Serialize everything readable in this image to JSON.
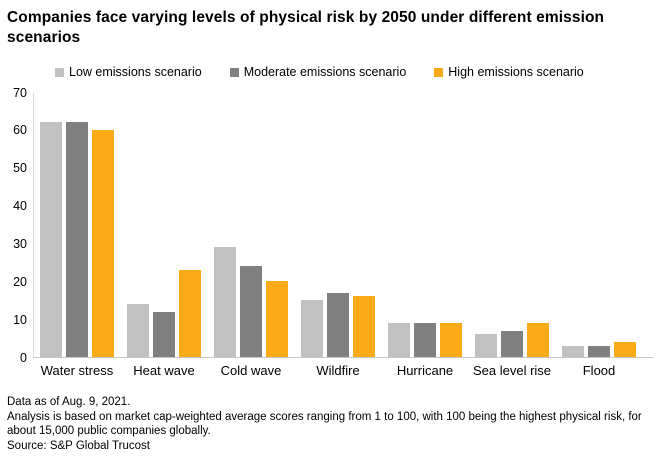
{
  "chart_data": {
    "type": "bar",
    "title": "Companies face varying levels of physical risk by 2050 under different emission scenarios",
    "categories": [
      "Water stress",
      "Heat wave",
      "Cold wave",
      "Wildfire",
      "Hurricane",
      "Sea level rise",
      "Flood"
    ],
    "series": [
      {
        "name": "Low emissions scenario",
        "color": "#c1c1c1",
        "values": [
          62,
          14,
          29,
          15,
          9,
          6,
          3
        ]
      },
      {
        "name": "Moderate emissions scenario",
        "color": "#808080",
        "values": [
          62,
          12,
          24,
          17,
          9,
          7,
          3
        ]
      },
      {
        "name": "High emissions scenario",
        "color": "#fbab18",
        "values": [
          60,
          23,
          20,
          16,
          9,
          9,
          4
        ]
      }
    ],
    "xlabel": "",
    "ylabel": "",
    "ylim": [
      0,
      70
    ],
    "y_ticks": [
      0,
      10,
      20,
      30,
      40,
      50,
      60,
      70
    ],
    "grid": false,
    "legend_position": "top"
  },
  "footer": {
    "line1": "Data as of Aug. 9, 2021.",
    "line2": "Analysis is based on market cap-weighted average scores ranging from 1 to 100, with 100 being the highest physical risk, for about 15,000 public companies globally.",
    "line3": "Source: S&P Global Trucost"
  }
}
